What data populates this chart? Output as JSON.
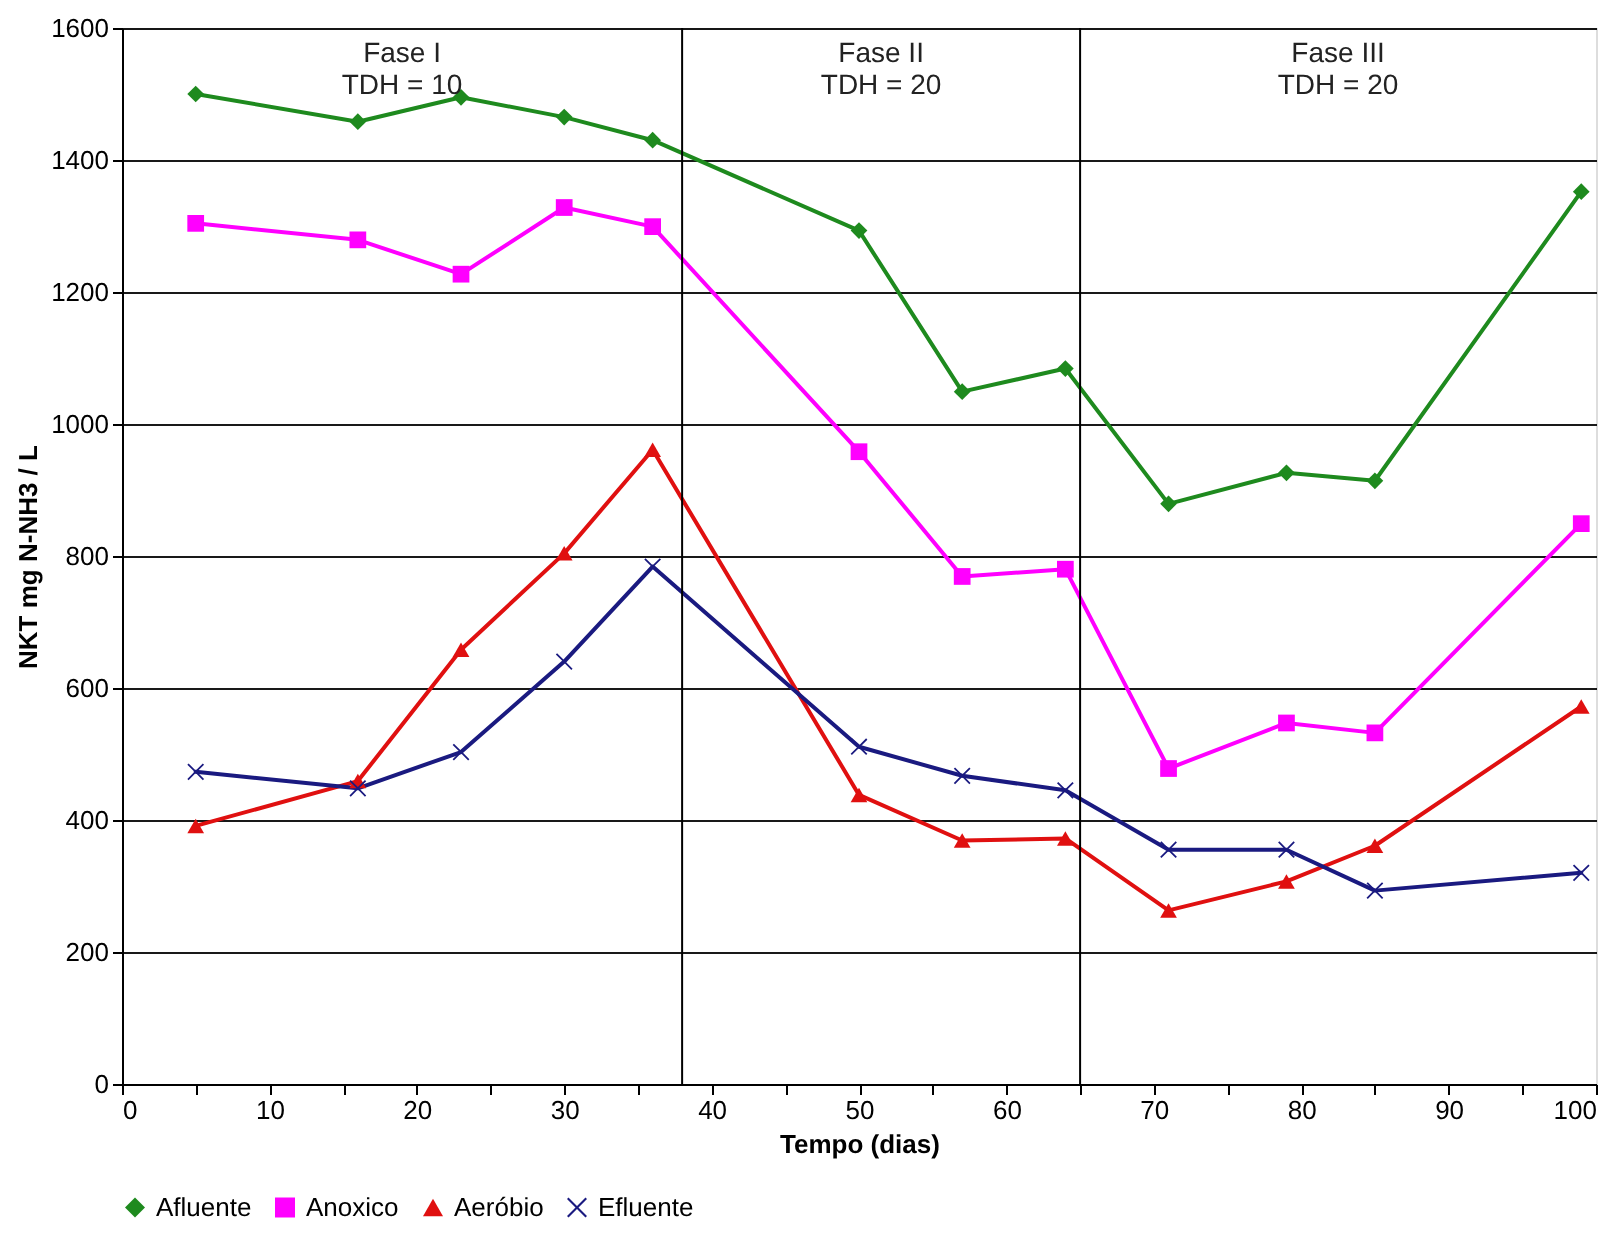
{
  "chart_data": {
    "type": "line",
    "xlabel": "Tempo (dias)",
    "ylabel": "NKT mg N-NH3 / L",
    "x": [
      5,
      16,
      23,
      30,
      36,
      50,
      57,
      64,
      71,
      79,
      85,
      99
    ],
    "series": [
      {
        "name": "Afluente",
        "color": "#1e8a1e",
        "marker": "diamond",
        "values": [
          1500,
          1458,
          1495,
          1465,
          1430,
          1293,
          1049,
          1084,
          879,
          926,
          914,
          1352
        ]
      },
      {
        "name": "Anoxico",
        "color": "#ff00ff",
        "marker": "square",
        "values": [
          1304,
          1279,
          1227,
          1328,
          1299,
          958,
          769,
          780,
          478,
          547,
          532,
          849
        ]
      },
      {
        "name": "Aeróbio",
        "color": "#e01010",
        "marker": "triangle",
        "values": [
          391,
          459,
          658,
          804,
          961,
          438,
          369,
          372,
          263,
          307,
          361,
          572
        ]
      },
      {
        "name": "Efluente",
        "color": "#1a1a80",
        "marker": "cross",
        "values": [
          473,
          448,
          503,
          640,
          784,
          511,
          467,
          445,
          355,
          355,
          293,
          320
        ]
      }
    ],
    "xlim": [
      0,
      100
    ],
    "ylim": [
      0,
      1600
    ],
    "xticks": [
      0,
      {
        "value": 5,
        "label": null
      },
      10,
      {
        "value": 15,
        "label": null
      },
      20,
      {
        "value": 25,
        "label": null
      },
      30,
      {
        "value": 35,
        "label": null
      },
      40,
      {
        "value": 45,
        "label": null
      },
      50,
      {
        "value": 55,
        "label": null
      },
      60,
      {
        "value": 65,
        "label": null
      },
      70,
      {
        "value": 75,
        "label": null
      },
      80,
      {
        "value": 85,
        "label": null
      },
      90,
      {
        "value": 95,
        "label": null
      },
      100
    ],
    "yticks": [
      0,
      200,
      400,
      600,
      800,
      1000,
      1200,
      1400,
      1600
    ],
    "ref_lines": [
      {
        "axis": "x",
        "value": 38,
        "color": "#000000"
      },
      {
        "axis": "x",
        "value": 65,
        "color": "#000000"
      }
    ],
    "annotations": [
      "Fase I\nTDH = 10",
      "Fase II\nTDH = 20",
      "Fase III\nTDH = 20"
    ],
    "grid": "y",
    "legend": "bottom"
  }
}
